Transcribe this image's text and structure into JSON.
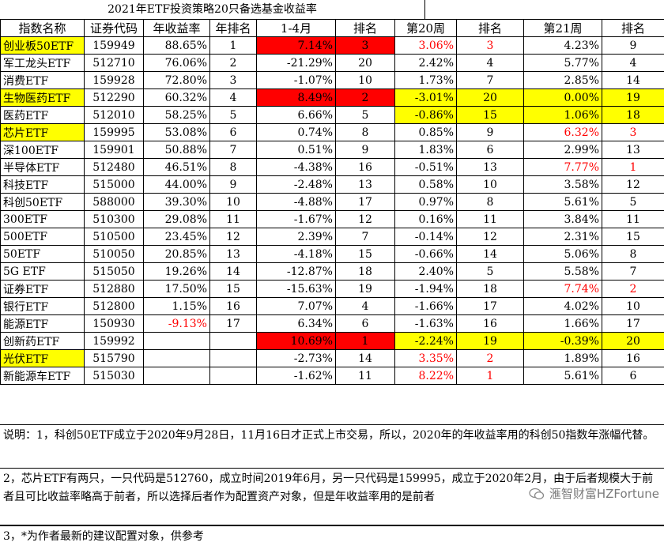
{
  "title": "2021年ETF投资策略20只备选基金收益率",
  "headers": [
    "指数名称",
    "证券代码",
    "年收益率",
    "年排名",
    "1-4月",
    "排名",
    "第20周",
    "排名",
    "第21周",
    "排名"
  ],
  "rows": [
    {
      "name": "创业板50ETF",
      "code": "159949",
      "ret": "88.65%",
      "rank": "1",
      "m14": "7.14%",
      "m14r": "3",
      "w20": "3.06%",
      "w20r": "3",
      "w21": "4.23%",
      "w21r": "9"
    },
    {
      "name": "军工龙头ETF",
      "code": "512710",
      "ret": "76.06%",
      "rank": "2",
      "m14": "-21.29%",
      "m14r": "20",
      "w20": "2.42%",
      "w20r": "4",
      "w21": "5.77%",
      "w21r": "4"
    },
    {
      "name": "消费ETF",
      "code": "159928",
      "ret": "72.80%",
      "rank": "3",
      "m14": "-1.07%",
      "m14r": "10",
      "w20": "1.73%",
      "w20r": "7",
      "w21": "2.85%",
      "w21r": "14"
    },
    {
      "name": "生物医药ETF",
      "code": "512290",
      "ret": "60.32%",
      "rank": "4",
      "m14": "8.49%",
      "m14r": "2",
      "w20": "-3.01%",
      "w20r": "20",
      "w21": "0.00%",
      "w21r": "19"
    },
    {
      "name": "医药ETF",
      "code": "512010",
      "ret": "58.25%",
      "rank": "5",
      "m14": "6.66%",
      "m14r": "5",
      "w20": "-0.86%",
      "w20r": "15",
      "w21": "1.06%",
      "w21r": "18"
    },
    {
      "name": "芯片ETF",
      "code": "159995",
      "ret": "53.08%",
      "rank": "6",
      "m14": "0.74%",
      "m14r": "8",
      "w20": "0.85%",
      "w20r": "9",
      "w21": "6.32%",
      "w21r": "3"
    },
    {
      "name": "深100ETF",
      "code": "159901",
      "ret": "50.88%",
      "rank": "7",
      "m14": "0.51%",
      "m14r": "9",
      "w20": "1.83%",
      "w20r": "6",
      "w21": "2.99%",
      "w21r": "13"
    },
    {
      "name": "半导体ETF",
      "code": "512480",
      "ret": "46.51%",
      "rank": "8",
      "m14": "-4.38%",
      "m14r": "16",
      "w20": "-0.51%",
      "w20r": "13",
      "w21": "7.77%",
      "w21r": "1"
    },
    {
      "name": "科技ETF",
      "code": "515000",
      "ret": "44.00%",
      "rank": "9",
      "m14": "-2.48%",
      "m14r": "13",
      "w20": "0.58%",
      "w20r": "10",
      "w21": "3.58%",
      "w21r": "12"
    },
    {
      "name": "科创50ETF",
      "code": "588000",
      "ret": "39.30%",
      "rank": "10",
      "m14": "-4.88%",
      "m14r": "17",
      "w20": "0.97%",
      "w20r": "8",
      "w21": "5.61%",
      "w21r": "5"
    },
    {
      "name": "300ETF",
      "code": "510300",
      "ret": "29.08%",
      "rank": "11",
      "m14": "-1.67%",
      "m14r": "12",
      "w20": "0.16%",
      "w20r": "11",
      "w21": "3.84%",
      "w21r": "11"
    },
    {
      "name": "500ETF",
      "code": "510500",
      "ret": "23.45%",
      "rank": "12",
      "m14": "2.39%",
      "m14r": "7",
      "w20": "-0.14%",
      "w20r": "12",
      "w21": "2.31%",
      "w21r": "15"
    },
    {
      "name": "50ETF",
      "code": "510050",
      "ret": "20.85%",
      "rank": "13",
      "m14": "-4.18%",
      "m14r": "15",
      "w20": "-0.66%",
      "w20r": "14",
      "w21": "5.06%",
      "w21r": "8"
    },
    {
      "name": "5G ETF",
      "code": "515050",
      "ret": "19.26%",
      "rank": "14",
      "m14": "-12.87%",
      "m14r": "18",
      "w20": "2.40%",
      "w20r": "5",
      "w21": "5.58%",
      "w21r": "7"
    },
    {
      "name": "证券ETF",
      "code": "512880",
      "ret": "17.50%",
      "rank": "15",
      "m14": "-15.63%",
      "m14r": "19",
      "w20": "-1.94%",
      "w20r": "18",
      "w21": "7.74%",
      "w21r": "2"
    },
    {
      "name": "银行ETF",
      "code": "512800",
      "ret": "1.15%",
      "rank": "16",
      "m14": "7.07%",
      "m14r": "4",
      "w20": "-1.66%",
      "w20r": "17",
      "w21": "4.02%",
      "w21r": "10"
    },
    {
      "name": "能源ETF",
      "code": "150930",
      "ret": "-9.13%",
      "rank": "17",
      "m14": "6.34%",
      "m14r": "6",
      "w20": "-1.63%",
      "w20r": "16",
      "w21": "1.66%",
      "w21r": "17"
    },
    {
      "name": "创新药ETF",
      "code": "159992",
      "ret": "",
      "rank": "",
      "m14": "10.69%",
      "m14r": "1",
      "w20": "-2.24%",
      "w20r": "19",
      "w21": "-0.39%",
      "w21r": "20"
    },
    {
      "name": "光伏ETF",
      "code": "515790",
      "ret": "",
      "rank": "",
      "m14": "-2.73%",
      "m14r": "14",
      "w20": "3.35%",
      "w20r": "2",
      "w21": "1.89%",
      "w21r": "16"
    },
    {
      "name": "新能源车ETF",
      "code": "515030",
      "ret": "",
      "rank": "",
      "m14": "-1.62%",
      "m14r": "11",
      "w20": "8.22%",
      "w20r": "1",
      "w21": "5.61%",
      "w21r": "6"
    }
  ],
  "notes": [
    "说明：1，科创50ETF成立于2020年9月28日，11月16日才正式上市交易，所以，2020年的年收益率用的科创50指数年涨幅代替。",
    "2，芯片ETF有两只，一只代码是512760，成立时间2019年6月，另一只代码是159995，成立于2020年2月，由于后者规模大于前者且可比收益率略高于前者，所以选择后者作为配置资产对象，但是年收益率用的是前者",
    "3，*为作者最新的建议配置对象，供参考"
  ],
  "watermark": "滙智财富HZFortune",
  "colors": {
    "highlight_red": "#ff0000",
    "highlight_yellow": "#ffff00",
    "red_text": "#ff0000"
  }
}
